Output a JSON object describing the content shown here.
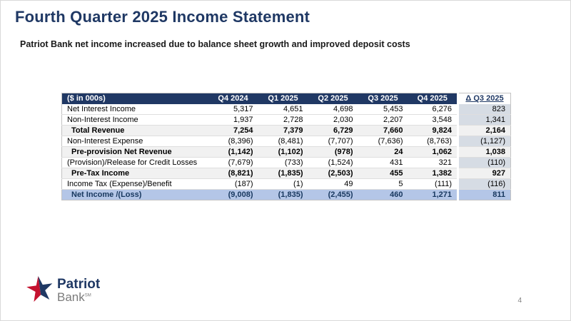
{
  "slide": {
    "title": "Fourth Quarter 2025 Income Statement",
    "subtitle": "Patriot Bank net income increased due to balance sheet growth and improved deposit costs",
    "page_number": "4"
  },
  "logo": {
    "name": "Patriot",
    "sub": "Bank",
    "sm": "SM",
    "mark": "star-icon"
  },
  "colors": {
    "title_navy": "#1F3864",
    "header_bg": "#203864",
    "header_text": "#FFFFFF",
    "subtotal_bg": "#F1F1F1",
    "highlight_bg": "#B4C6E7",
    "delta_col_bg": "#D6DCE4",
    "logo_red": "#C4122F",
    "logo_blue": "#1F3864"
  },
  "table": {
    "columns": [
      "($ in 000s)",
      "Q4 2024",
      "Q1 2025",
      "Q2 2025",
      "Q3 2025",
      "Q4 2025",
      "Δ Q3 2025"
    ],
    "rows": [
      {
        "label": "Net Interest Income",
        "style": "normal",
        "values": [
          "5,317",
          "4,651",
          "4,698",
          "5,453",
          "6,276",
          "823"
        ]
      },
      {
        "label": "Non-Interest Income",
        "style": "normal",
        "values": [
          "1,937",
          "2,728",
          "2,030",
          "2,207",
          "3,548",
          "1,341"
        ]
      },
      {
        "label": "Total Revenue",
        "style": "subtotal",
        "values": [
          "7,254",
          "7,379",
          "6,729",
          "7,660",
          "9,824",
          "2,164"
        ]
      },
      {
        "label": "Non-Interest Expense",
        "style": "normal",
        "values": [
          "(8,396)",
          "(8,481)",
          "(7,707)",
          "(7,636)",
          "(8,763)",
          "(1,127)"
        ]
      },
      {
        "label": "Pre-provision Net Revenue",
        "style": "subtotal",
        "values": [
          "(1,142)",
          "(1,102)",
          "(978)",
          "24",
          "1,062",
          "1,038"
        ]
      },
      {
        "label": "(Provision)/Release for Credit Losses",
        "style": "normal",
        "values": [
          "(7,679)",
          "(733)",
          "(1,524)",
          "431",
          "321",
          "(110)"
        ]
      },
      {
        "label": "Pre-Tax Income",
        "style": "subtotal",
        "values": [
          "(8,821)",
          "(1,835)",
          "(2,503)",
          "455",
          "1,382",
          "927"
        ]
      },
      {
        "label": "Income Tax (Expense)/Benefit",
        "style": "normal",
        "values": [
          "(187)",
          "(1)",
          "49",
          "5",
          "(111)",
          "(116)"
        ]
      },
      {
        "label": "Net Income /(Loss)",
        "style": "total",
        "values": [
          "(9,008)",
          "(1,835)",
          "(2,455)",
          "460",
          "1,271",
          "811"
        ]
      }
    ]
  }
}
